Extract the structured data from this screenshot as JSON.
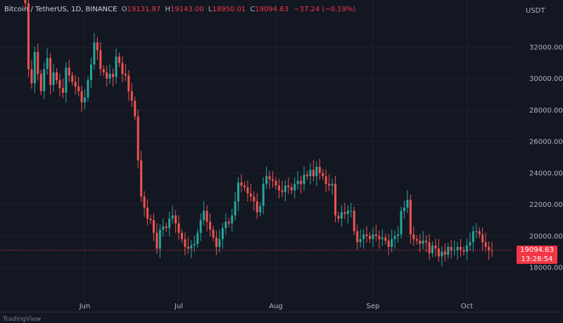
{
  "header": {
    "title": "Bitcoin / TetherUS, 1D, BINANCE",
    "open_label": "O",
    "open": "19131.87",
    "high_label": "H",
    "high": "19143.00",
    "low_label": "L",
    "low": "18950.01",
    "close_label": "C",
    "close": "19094.63",
    "change": "−37.24 (−0.19%)"
  },
  "axis_unit": "USDT",
  "price_tag": {
    "price": "19094.63",
    "countdown": "13:28:54"
  },
  "footer_logo": "TradingView",
  "colors": {
    "up": "#26a69a",
    "down": "#ef5350",
    "background": "#131722",
    "axis_text": "#b2b5be",
    "price_line": "#f23645"
  },
  "chart_data": {
    "type": "candlestick",
    "title": "Bitcoin / TetherUS, 1D, BINANCE",
    "ylim": [
      17000,
      35200
    ],
    "yticks": [
      "18000.00",
      "20000.00",
      "22000.00",
      "24000.00",
      "26000.00",
      "28000.00",
      "30000.00",
      "32000.00"
    ],
    "ytick_values": [
      18000,
      20000,
      22000,
      24000,
      26000,
      28000,
      30000,
      32000
    ],
    "xticks": [
      "Jun",
      "Jul",
      "Aug",
      "Sep",
      "Oct"
    ],
    "xtick_day_index": [
      19,
      49,
      80,
      111,
      141
    ],
    "first_day": "2022-05-13",
    "last_price": 19094.63,
    "closes": [
      34800,
      30600,
      29700,
      31700,
      30300,
      29200,
      30600,
      31300,
      29600,
      30400,
      29900,
      29400,
      29100,
      30700,
      30200,
      29800,
      29500,
      29200,
      28500,
      28800,
      29900,
      30900,
      32300,
      31800,
      30600,
      30400,
      30000,
      30300,
      30100,
      31400,
      31000,
      30300,
      30200,
      29200,
      28600,
      27600,
      24800,
      22500,
      21800,
      21100,
      21000,
      20200,
      19200,
      20400,
      20600,
      20500,
      21100,
      21300,
      20800,
      20200,
      19800,
      19300,
      19200,
      19400,
      19500,
      20200,
      21000,
      21600,
      20900,
      20400,
      19900,
      19300,
      19800,
      20500,
      20900,
      20800,
      21300,
      22200,
      23400,
      23200,
      23100,
      22700,
      22500,
      22200,
      21500,
      21900,
      23300,
      23800,
      23600,
      23500,
      23200,
      22900,
      22800,
      23200,
      23100,
      22900,
      23300,
      23500,
      23300,
      23900,
      23800,
      24200,
      23800,
      24400,
      24000,
      23800,
      23300,
      23200,
      23300,
      21300,
      21100,
      21500,
      21400,
      21600,
      21600,
      20300,
      19600,
      19800,
      20100,
      20000,
      19800,
      20100,
      20000,
      19800,
      19900,
      19700,
      19300,
      19800,
      20000,
      20100,
      21600,
      21800,
      22300,
      20100,
      19800,
      19700,
      19500,
      19700,
      19600,
      18900,
      19400,
      19200,
      18700,
      19000,
      18800,
      19300,
      19100,
      19100,
      19300,
      19100,
      19000,
      19400,
      19600,
      20300,
      20300,
      20100,
      19600,
      19300,
      19100,
      19094.63
    ]
  }
}
